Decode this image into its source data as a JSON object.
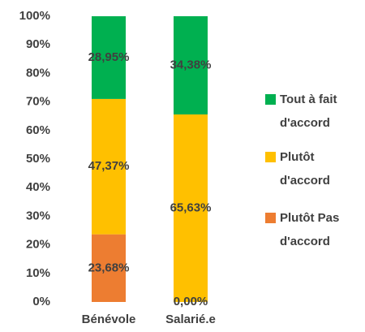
{
  "chart_data": {
    "type": "stacked_bar",
    "categories": [
      "Bénévole",
      "Salarié.e"
    ],
    "series": [
      {
        "name": "Plutôt Pas d'accord",
        "color": "#ED7D31",
        "values": [
          23.68,
          0.0
        ],
        "value_labels": [
          "23,68%",
          "0,00%"
        ]
      },
      {
        "name": "Plutôt d'accord",
        "color": "#FFC000",
        "values": [
          47.37,
          65.63
        ],
        "value_labels": [
          "47,37%",
          "65,63%"
        ]
      },
      {
        "name": "Tout à fait d'accord",
        "color": "#00B050",
        "values": [
          28.95,
          34.38
        ],
        "value_labels": [
          "28,95%",
          "34,38%"
        ]
      }
    ],
    "ylim": [
      0,
      100
    ],
    "yticks": [
      {
        "value": 0,
        "label": "0%"
      },
      {
        "value": 10,
        "label": "10%"
      },
      {
        "value": 20,
        "label": "20%"
      },
      {
        "value": 30,
        "label": "30%"
      },
      {
        "value": 40,
        "label": "40%"
      },
      {
        "value": 50,
        "label": "50%"
      },
      {
        "value": 60,
        "label": "60%"
      },
      {
        "value": 70,
        "label": "70%"
      },
      {
        "value": 80,
        "label": "80%"
      },
      {
        "value": 90,
        "label": "90%"
      },
      {
        "value": 100,
        "label": "100%"
      }
    ],
    "grid": false,
    "legend": "right"
  }
}
